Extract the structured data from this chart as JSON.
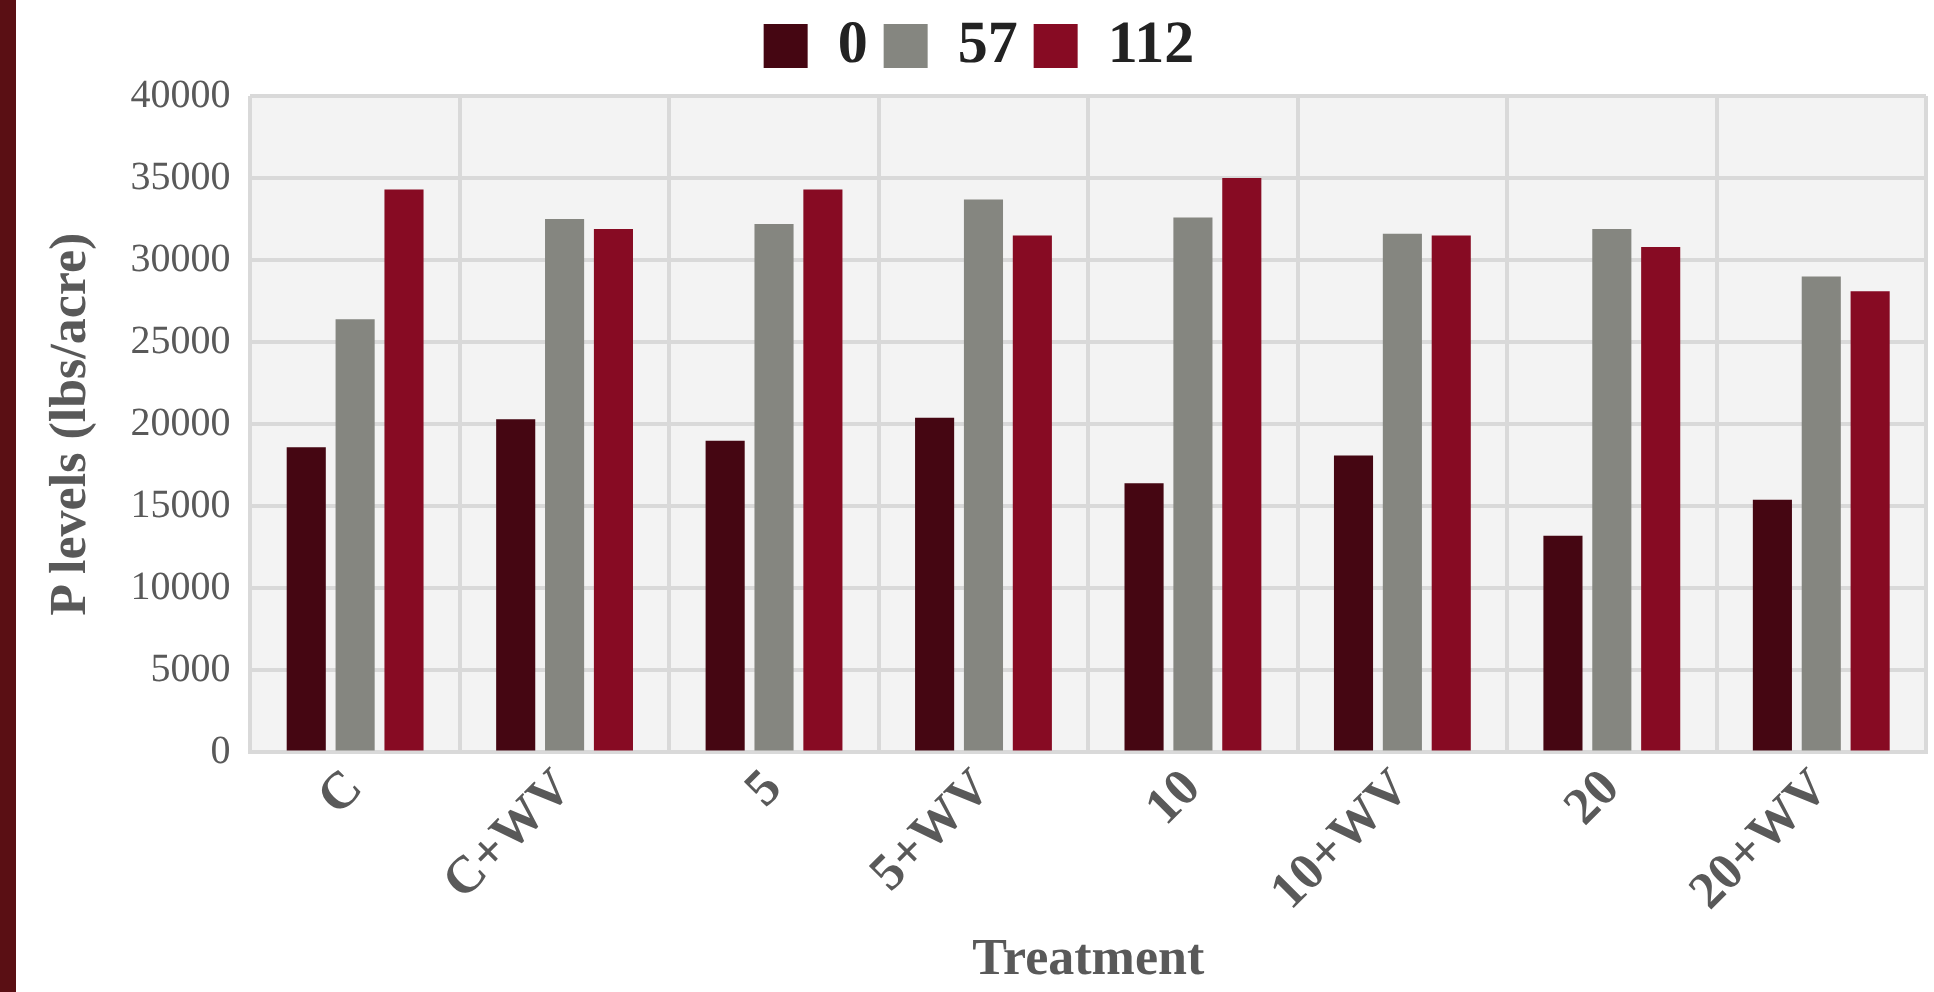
{
  "chart_data": {
    "type": "bar",
    "xlabel": "Treatment",
    "ylabel": "P levels (lbs/acre)",
    "categories": [
      "C",
      "C+WV",
      "5",
      "5+WV",
      "10",
      "10+WV",
      "20",
      "20+WV"
    ],
    "series": [
      {
        "name": "0",
        "color": "#450612",
        "values": [
          18600,
          20300,
          19000,
          20400,
          16400,
          18100,
          13200,
          15400
        ]
      },
      {
        "name": "57",
        "color": "#858680",
        "values": [
          26400,
          32500,
          32200,
          33700,
          32600,
          31600,
          31900,
          29000
        ]
      },
      {
        "name": "112",
        "color": "#870b23",
        "values": [
          34300,
          31900,
          34300,
          31500,
          35000,
          31500,
          30800,
          28100
        ]
      }
    ],
    "ylim": [
      0,
      40000
    ],
    "yticks": [
      0,
      5000,
      10000,
      15000,
      20000,
      25000,
      30000,
      35000,
      40000
    ],
    "grid": true,
    "legend": "top"
  }
}
